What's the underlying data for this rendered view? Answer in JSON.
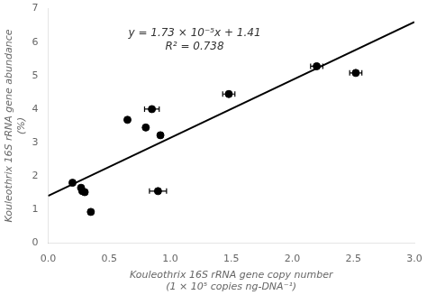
{
  "chart_data": {
    "type": "scatter",
    "xlabel": [
      "Kouleothrix 16S rRNA gene copy number",
      "(1 × 10⁵ copies ng-DNA⁻¹)"
    ],
    "ylabel": [
      "Kouleothrix 16S rRNA gene abundance",
      "(%)"
    ],
    "annotations": [
      {
        "text": [
          "y = 1.73 × 10⁻⁵x + 1.41",
          "R² = 0.738"
        ]
      }
    ],
    "series": [
      {
        "type": "line",
        "color": "black",
        "line_style": "solid",
        "x": [
          0.0,
          3.0
        ],
        "values": [
          1.41,
          6.6
        ]
      },
      {
        "type": "scatter",
        "color": "black",
        "marker": "circle",
        "x": [
          0.2,
          0.27,
          0.28,
          0.3,
          0.35,
          0.65,
          0.8,
          0.85,
          0.92,
          0.9,
          1.48,
          2.2,
          2.52
        ],
        "values": [
          1.8,
          1.65,
          1.55,
          1.52,
          0.93,
          3.68,
          3.45,
          4.0,
          3.22,
          1.55,
          4.45,
          5.28,
          5.08
        ],
        "xerr": [
          0.0,
          0.0,
          0.0,
          0.0,
          0.0,
          0.0,
          0.0,
          0.06,
          0.0,
          0.07,
          0.05,
          0.05,
          0.05
        ],
        "yerr": [
          0.0,
          0.0,
          0.0,
          0.0,
          0.0,
          0.0,
          0.0,
          0.0,
          0.0,
          0.0,
          0.0,
          0.0,
          0.0
        ]
      }
    ],
    "xlim": [
      0,
      3
    ],
    "ylim": [
      0,
      7
    ],
    "xticks": [
      {
        "value": 0,
        "label": "0.0"
      },
      0.5,
      {
        "value": 1,
        "label": "1.0"
      },
      1.5,
      {
        "value": 2,
        "label": "2.0"
      },
      2.5,
      {
        "value": 3,
        "label": "3.0"
      }
    ],
    "yticks": [
      0,
      1,
      2,
      3,
      4,
      5,
      6,
      7
    ],
    "grid": false
  }
}
